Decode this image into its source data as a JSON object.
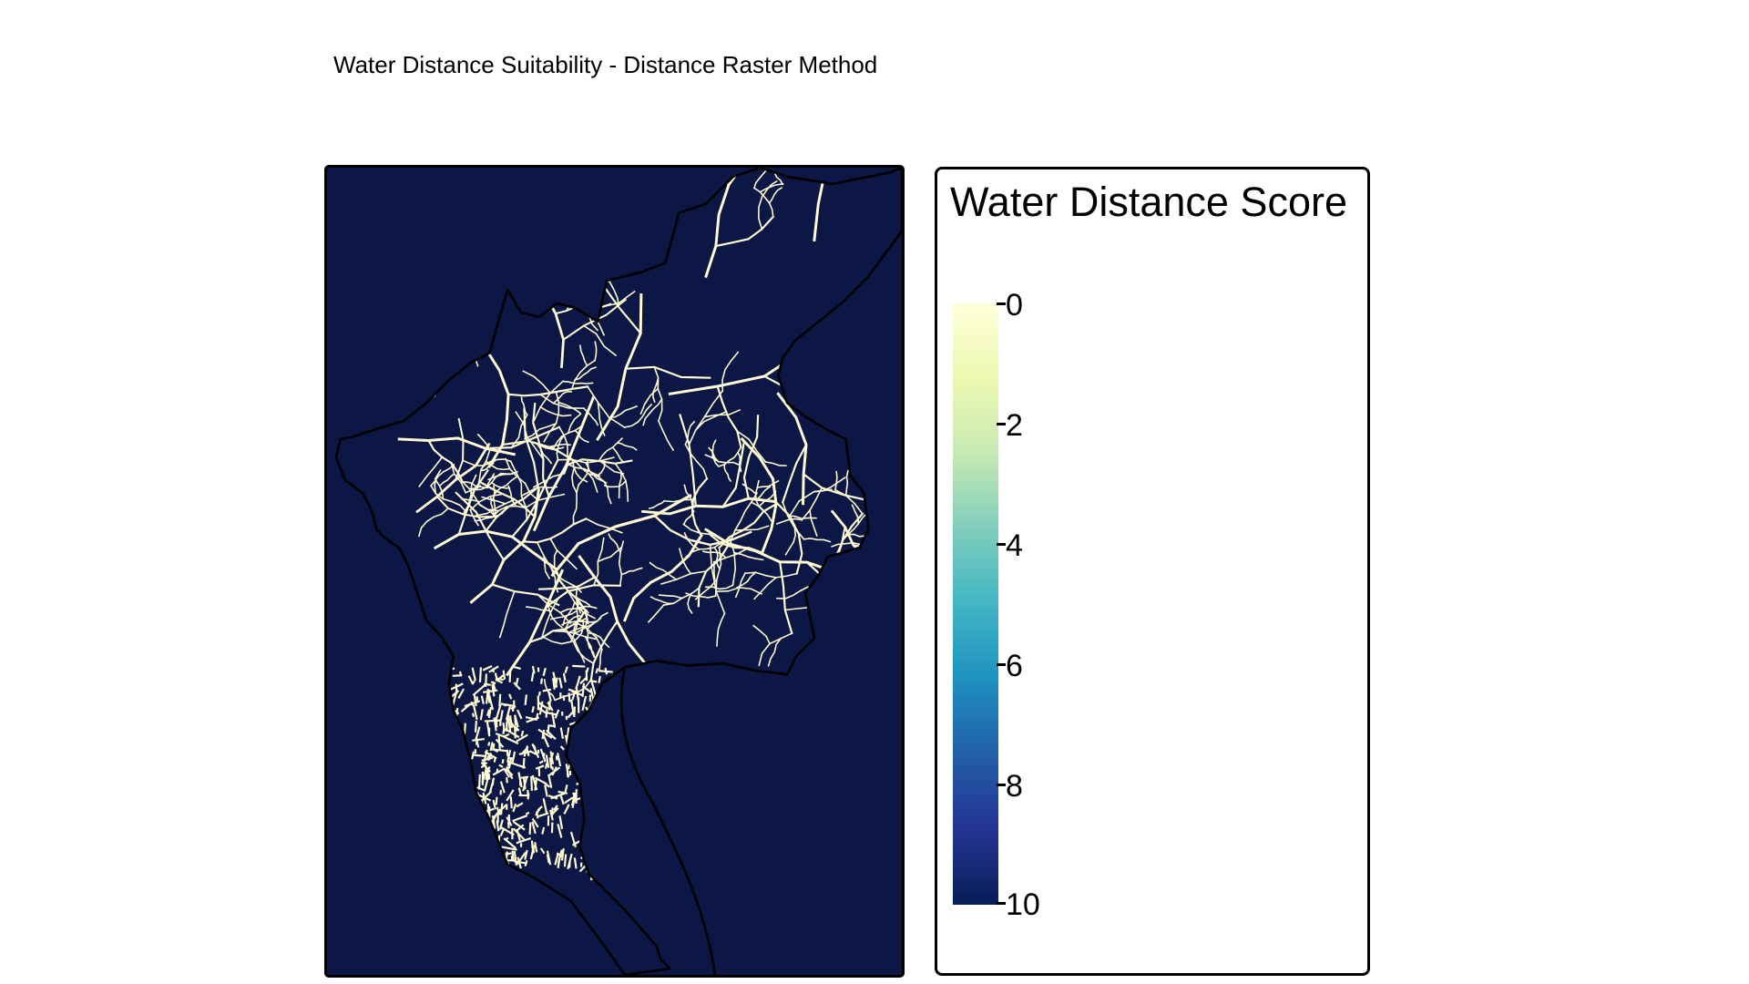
{
  "title": "Water Distance Suitability - Distance Raster Method",
  "legend": {
    "title": "Water Distance Score",
    "ticks": [
      {
        "value": 0,
        "label": "0"
      },
      {
        "value": 2,
        "label": "2"
      },
      {
        "value": 4,
        "label": "4"
      },
      {
        "value": 6,
        "label": "6"
      },
      {
        "value": 8,
        "label": "8"
      },
      {
        "value": 10,
        "label": "10"
      }
    ],
    "range": [
      0,
      10
    ],
    "colors": [
      "#ffffd9",
      "#edf8b1",
      "#c7e9b4",
      "#7fcdbb",
      "#41b6c4",
      "#1d91c0",
      "#225ea8",
      "#253494",
      "#081d58"
    ]
  },
  "map": {
    "background_color": "#0c1745",
    "stream_color": "#fffbd4",
    "boundary_color": "#000000"
  }
}
